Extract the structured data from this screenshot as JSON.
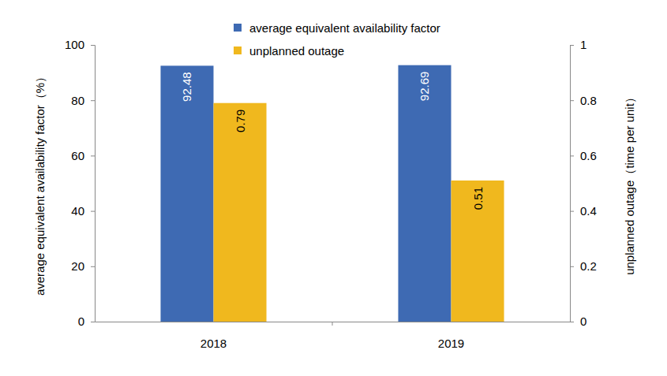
{
  "chart_data": {
    "type": "bar",
    "categories": [
      "2018",
      "2019"
    ],
    "series": [
      {
        "name": "average equivalent availability factor",
        "color": "#3e6ab3",
        "values": [
          92.48,
          92.69
        ]
      },
      {
        "name": "unplanned outage",
        "color": "#f0b81e",
        "values": [
          0.79,
          0.51
        ],
        "axis": "y2"
      }
    ],
    "y_label": "average equivalent availability factor（%）",
    "y2_label": "unplanned outage（time per unit）",
    "ylim": [
      0,
      100
    ],
    "yticks": [
      0,
      20,
      40,
      60,
      80,
      100
    ],
    "y2lim": [
      0,
      1
    ],
    "y2ticks": [
      0,
      0.2,
      0.4,
      0.6,
      0.8,
      1
    ],
    "data_labels": true,
    "legend": "top",
    "grid": false
  }
}
